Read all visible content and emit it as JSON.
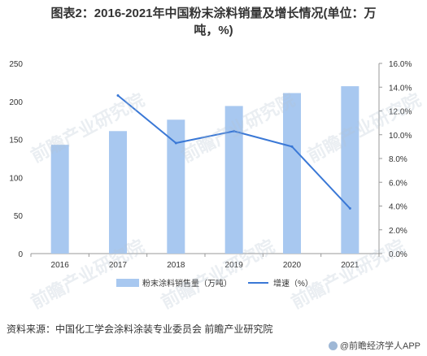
{
  "title": {
    "line1": "图表2：2016-2021年中国粉末涂料销量及增长情况(单位：万",
    "line2": "吨，%)"
  },
  "source": "资料来源：中国化工学会涂料涂装专业委员会 前瞻产业研究院",
  "credit": "@前瞻经济学人APP",
  "watermark": "前瞻产业研究院",
  "colors": {
    "bar": "#a8c8f0",
    "line": "#3a78d6",
    "axis": "#999999",
    "text": "#333333"
  },
  "chart_data": {
    "type": "bar",
    "categories": [
      "2016",
      "2017",
      "2018",
      "2019",
      "2020",
      "2021"
    ],
    "series": [
      {
        "name": "粉末涂料销售量（万吨）",
        "type": "bar",
        "axis": "left",
        "values": [
          143,
          161,
          176,
          194,
          211,
          220
        ]
      },
      {
        "name": "增速（%）",
        "type": "line",
        "axis": "right",
        "values": [
          null,
          13.3,
          9.3,
          10.3,
          9.0,
          3.8
        ]
      }
    ],
    "ylim_left": [
      0,
      250
    ],
    "yticks_left": [
      "0",
      "50",
      "100",
      "150",
      "200",
      "250"
    ],
    "ylim_right": [
      0,
      16
    ],
    "yticks_right": [
      "0.0%",
      "2.0%",
      "4.0%",
      "6.0%",
      "8.0%",
      "10.0%",
      "12.0%",
      "14.0%",
      "16.0%"
    ],
    "grid": false,
    "legend_position": "bottom"
  }
}
